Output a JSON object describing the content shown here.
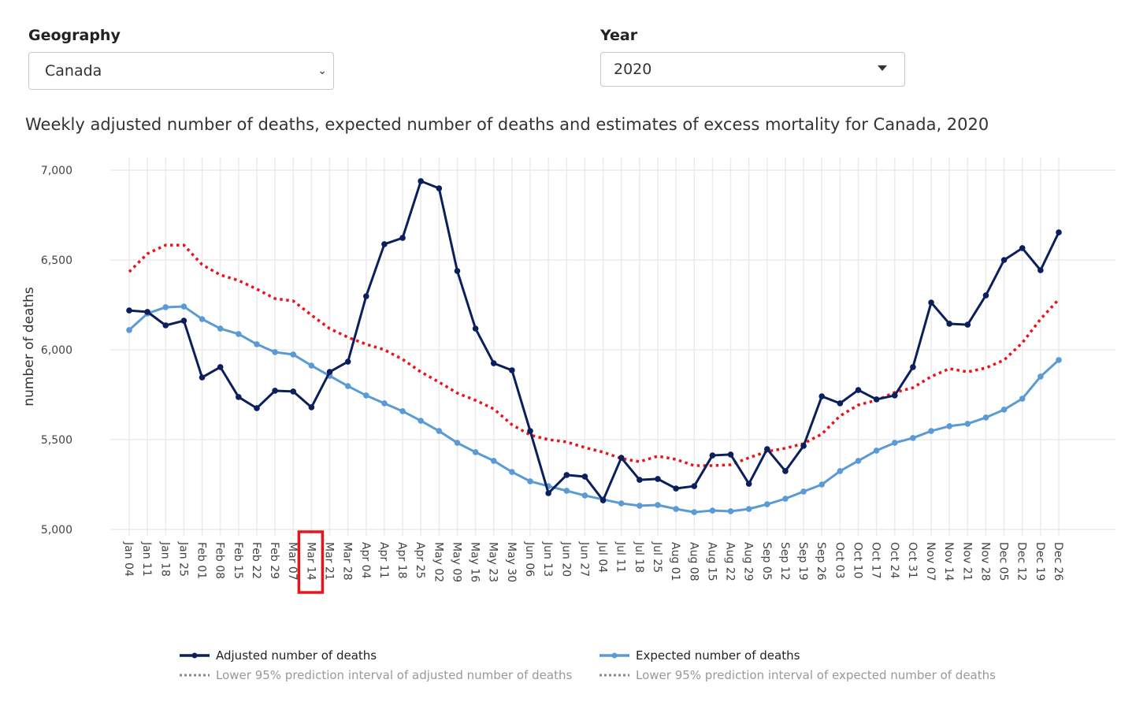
{
  "filters": {
    "geography_label": "Geography",
    "geography_value": "Canada",
    "year_label": "Year",
    "year_value": "2020"
  },
  "chart_data": {
    "type": "line",
    "title": "Weekly adjusted number of deaths, expected number of deaths and estimates of excess mortality for Canada, 2020",
    "xlabel": "",
    "ylabel": "number of deaths",
    "ylim": [
      5000,
      7000
    ],
    "yticks": [
      "5,000",
      "5,500",
      "6,000",
      "6,500",
      "7,000"
    ],
    "ytick_values": [
      5000,
      5500,
      6000,
      6500,
      7000
    ],
    "grid": true,
    "highlighted_category": "Mar 14",
    "categories": [
      "Jan 04",
      "Jan 11",
      "Jan 18",
      "Jan 25",
      "Feb 01",
      "Feb 08",
      "Feb 15",
      "Feb 22",
      "Feb 29",
      "Mar 07",
      "Mar 14",
      "Mar 21",
      "Mar 28",
      "Apr 04",
      "Apr 11",
      "Apr 18",
      "Apr 25",
      "May 02",
      "May 09",
      "May 16",
      "May 23",
      "May 30",
      "Jun 06",
      "Jun 13",
      "Jun 20",
      "Jun 27",
      "Jul 04",
      "Jul 11",
      "Jul 18",
      "Jul 25",
      "Aug 01",
      "Aug 08",
      "Aug 15",
      "Aug 22",
      "Aug 29",
      "Sep 05",
      "Sep 12",
      "Sep 19",
      "Sep 26",
      "Oct 03",
      "Oct 10",
      "Oct 17",
      "Oct 24",
      "Oct 31",
      "Nov 07",
      "Nov 14",
      "Nov 21",
      "Nov 28",
      "Dec 05",
      "Dec 12",
      "Dec 19",
      "Dec 26"
    ],
    "series": [
      {
        "name": "Adjusted number of deaths",
        "color": "#0b1f5c",
        "style": "line-markers",
        "values": [
          6219,
          6211,
          6136,
          6162,
          5846,
          5904,
          5737,
          5675,
          5772,
          5768,
          5680,
          5877,
          5934,
          6298,
          6588,
          6623,
          6939,
          6899,
          6439,
          6118,
          5925,
          5886,
          5548,
          5202,
          5303,
          5294,
          5162,
          5399,
          5276,
          5281,
          5228,
          5241,
          5412,
          5417,
          5254,
          5447,
          5325,
          5465,
          5741,
          5702,
          5776,
          5724,
          5746,
          5904,
          6263,
          6145,
          6140,
          6303,
          6500,
          6566,
          6443,
          6654
        ]
      },
      {
        "name": "Expected number of deaths",
        "color": "#5b9bd5",
        "style": "line-markers",
        "values": [
          6110,
          6202,
          6237,
          6241,
          6171,
          6118,
          6088,
          6031,
          5987,
          5974,
          5912,
          5855,
          5798,
          5746,
          5702,
          5658,
          5605,
          5548,
          5482,
          5430,
          5382,
          5320,
          5268,
          5241,
          5215,
          5189,
          5167,
          5145,
          5132,
          5136,
          5114,
          5096,
          5105,
          5101,
          5114,
          5140,
          5171,
          5211,
          5250,
          5325,
          5382,
          5439,
          5482,
          5509,
          5548,
          5575,
          5588,
          5623,
          5667,
          5728,
          5851,
          5943
        ]
      },
      {
        "color": "#e8141c",
        "style": "dotted",
        "values": [
          6434,
          6535,
          6583,
          6583,
          6474,
          6417,
          6386,
          6338,
          6285,
          6272,
          6193,
          6118,
          6070,
          6031,
          6000,
          5947,
          5877,
          5820,
          5759,
          5719,
          5671,
          5583,
          5526,
          5500,
          5487,
          5456,
          5430,
          5395,
          5377,
          5408,
          5390,
          5355,
          5355,
          5360,
          5399,
          5434,
          5452,
          5478,
          5531,
          5632,
          5693,
          5719,
          5763,
          5789,
          5851,
          5895,
          5877,
          5899,
          5943,
          6039,
          6171,
          6281
        ]
      }
    ],
    "legend": [
      {
        "label": "Adjusted number of deaths",
        "color": "#0b1f5c",
        "style": "line-markers",
        "active": true
      },
      {
        "label": "Expected number of deaths",
        "color": "#5b9bd5",
        "style": "line-markers",
        "active": true
      },
      {
        "label": "Lower 95% prediction interval of adjusted number of deaths",
        "color": "#888888",
        "style": "dotted",
        "active": false
      },
      {
        "label": "Lower 95% prediction interval of expected number of deaths",
        "color": "#888888",
        "style": "dotted",
        "active": false
      }
    ],
    "legend_position": "bottom"
  }
}
